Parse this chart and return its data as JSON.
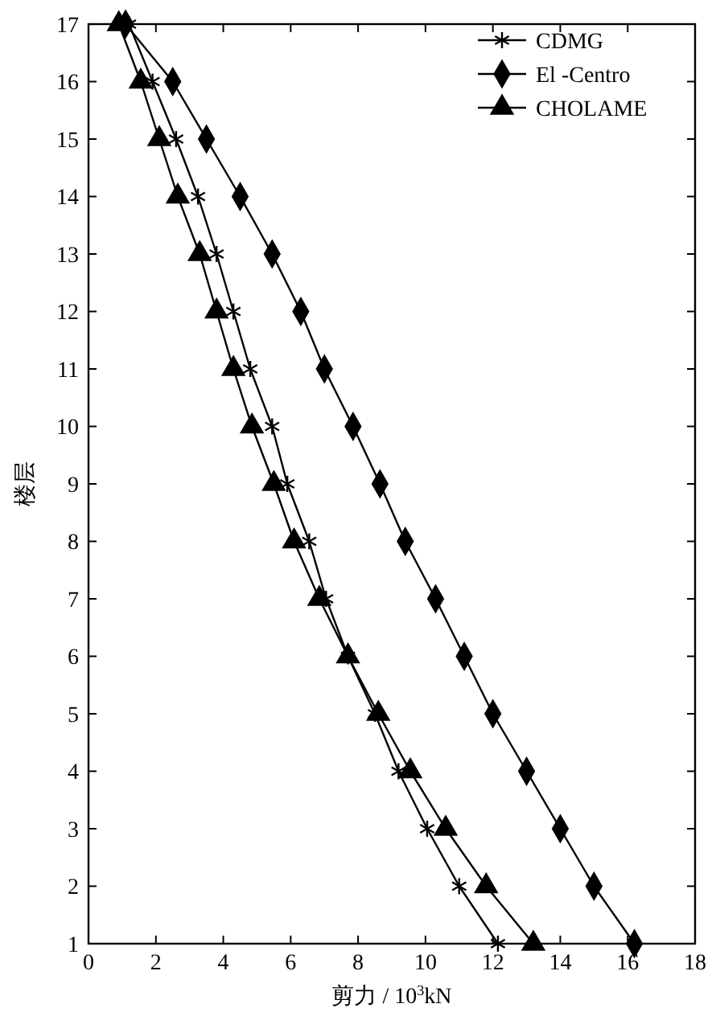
{
  "chart_data": {
    "type": "line",
    "xlabel": "剪力 / 10$^{3}$kN",
    "ylabel": "楼层",
    "xlim": [
      0,
      18
    ],
    "ylim": [
      1,
      17
    ],
    "xticks": [
      0,
      2,
      4,
      6,
      8,
      10,
      12,
      14,
      16,
      18
    ],
    "yticks": [
      1,
      2,
      3,
      4,
      5,
      6,
      7,
      8,
      9,
      10,
      11,
      12,
      13,
      14,
      15,
      16,
      17
    ],
    "grid": false,
    "legend": "top right",
    "line_style": "solid",
    "series": [
      {
        "name": "CDMG",
        "color": "#000000",
        "marker": "cross",
        "x": [
          12.15,
          11.0,
          10.05,
          9.2,
          8.5,
          7.7,
          7.05,
          6.55,
          5.9,
          5.45,
          4.8,
          4.3,
          3.8,
          3.25,
          2.6,
          1.9,
          1.2
        ],
        "values": [
          1,
          2,
          3,
          4,
          5,
          6,
          7,
          8,
          9,
          10,
          11,
          12,
          13,
          14,
          15,
          16,
          17
        ]
      },
      {
        "name": "El -Centro",
        "color": "#000000",
        "marker": "diamond",
        "x": [
          16.2,
          15.0,
          14.0,
          13.0,
          12.0,
          11.15,
          10.3,
          9.4,
          8.65,
          7.85,
          7.0,
          6.3,
          5.45,
          4.5,
          3.5,
          2.5,
          1.1
        ],
        "values": [
          1,
          2,
          3,
          4,
          5,
          6,
          7,
          8,
          9,
          10,
          11,
          12,
          13,
          14,
          15,
          16,
          17
        ]
      },
      {
        "name": "CHOLAME",
        "color": "#000000",
        "marker": "triangle",
        "x": [
          13.2,
          11.8,
          10.6,
          9.55,
          8.6,
          7.7,
          6.85,
          6.1,
          5.5,
          4.85,
          4.3,
          3.8,
          3.3,
          2.65,
          2.1,
          1.55,
          0.9
        ],
        "values": [
          1,
          2,
          3,
          4,
          5,
          6,
          7,
          8,
          9,
          10,
          11,
          12,
          13,
          14,
          15,
          16,
          17
        ]
      }
    ]
  }
}
